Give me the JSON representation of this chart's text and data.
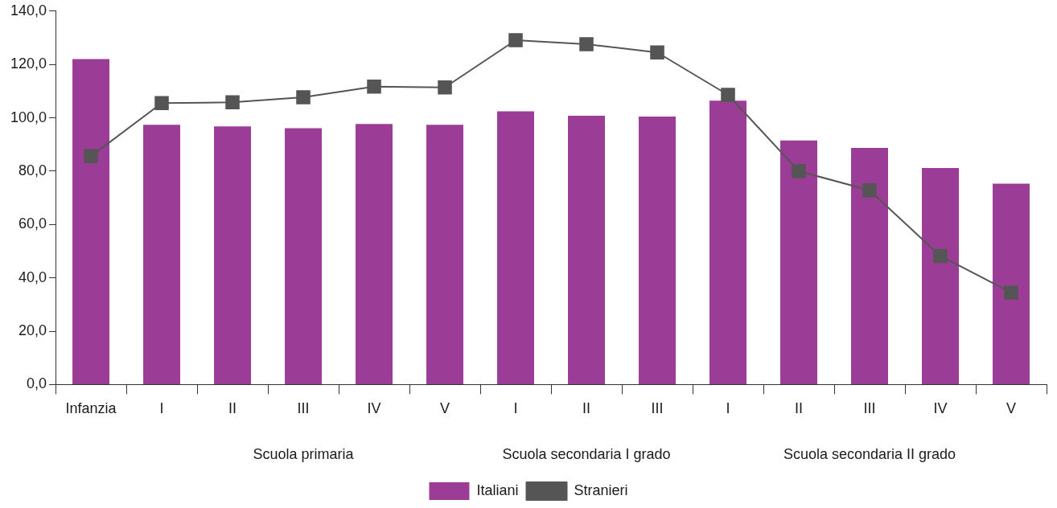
{
  "chart_data": {
    "type": "bar",
    "categories": [
      "Infanzia",
      "I",
      "II",
      "III",
      "IV",
      "V",
      "I",
      "II",
      "III",
      "I",
      "II",
      "III",
      "IV",
      "V"
    ],
    "series": [
      {
        "name": "Italiani",
        "color": "#9b3d96",
        "values": [
          122.0,
          97.4,
          96.8,
          96.1,
          97.7,
          97.4,
          102.4,
          100.8,
          100.5,
          106.4,
          91.5,
          88.7,
          81.2,
          75.3
        ]
      },
      {
        "name": "Stranieri",
        "type": "line",
        "color": "#555555",
        "values": [
          85.6,
          105.5,
          105.8,
          107.7,
          111.7,
          111.4,
          129.1,
          127.6,
          124.5,
          108.6,
          80.0,
          72.8,
          48.2,
          34.5
        ]
      }
    ],
    "ylim": [
      0,
      140
    ],
    "yticks": [
      {
        "value": 0,
        "label": "0,0"
      },
      {
        "value": 20,
        "label": "20,0"
      },
      {
        "value": 40,
        "label": "40,0"
      },
      {
        "value": 60,
        "label": "60,0"
      },
      {
        "value": 80,
        "label": "80,0"
      },
      {
        "value": 100,
        "label": "100,0"
      },
      {
        "value": 120,
        "label": "120,0"
      },
      {
        "value": 140,
        "label": "140,0"
      }
    ],
    "annotations": [
      "Scuola primaria",
      "Scuola secondaria I grado",
      "Scuola secondaria II grado"
    ],
    "legend": "bottom",
    "marker": "square",
    "line_style": "solid",
    "grid": false
  }
}
